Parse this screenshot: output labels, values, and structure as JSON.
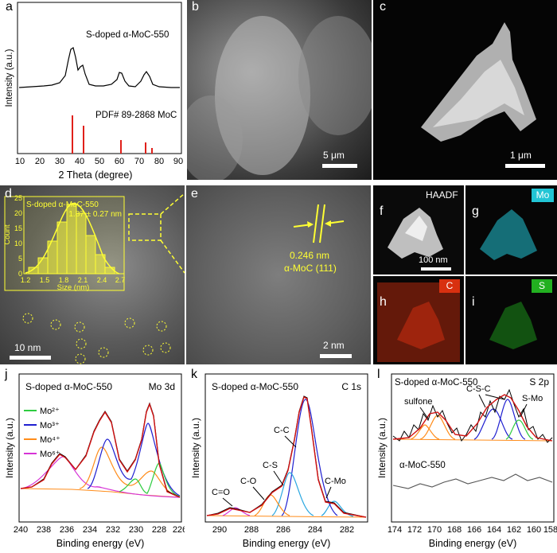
{
  "panels": {
    "a": {
      "label": "a",
      "sample_label": "S-doped α-MoC-550",
      "ref_label": "PDF# 89-2868 MoC",
      "xlabel": "2 Theta (degree)",
      "ylabel": "Intensity (a.u.)",
      "xticks": [
        "10",
        "20",
        "30",
        "40",
        "50",
        "60",
        "70",
        "80",
        "90"
      ]
    },
    "b": {
      "label": "b",
      "scale": "5 μm"
    },
    "c": {
      "label": "c",
      "scale": "1 μm"
    },
    "d": {
      "label": "d",
      "scale": "10 nm",
      "inset_title": "S-doped α-MoC-550",
      "inset_value": "1.87 ± 0.27 nm",
      "inset_ylabel": "Count",
      "inset_xlabel": "Size (nm)",
      "inset_xticks": [
        "1.2",
        "1.5",
        "1.8",
        "2.1",
        "2.4",
        "2.7"
      ],
      "inset_yticks": [
        "0",
        "5",
        "10",
        "15",
        "20",
        "25"
      ]
    },
    "e": {
      "label": "e",
      "scale": "2 nm",
      "spacing": "0.246 nm",
      "plane": "α-MoC (111)"
    },
    "f": {
      "label": "f",
      "tag": "HAADF",
      "scale": "100 nm"
    },
    "g": {
      "label": "g",
      "tag": "Mo"
    },
    "h": {
      "label": "h",
      "tag": "C"
    },
    "i": {
      "label": "i",
      "tag": "S"
    },
    "j": {
      "label": "j",
      "title": "S-doped α-MoC-550",
      "core": "Mo 3d",
      "legend": [
        "Mo²⁺",
        "Mo³⁺",
        "Mo⁴⁺",
        "Mo⁶⁺"
      ],
      "xlabel": "Binding energy (eV)",
      "ylabel": "Intensity (a.u.)",
      "xticks": [
        "240",
        "238",
        "236",
        "234",
        "232",
        "230",
        "228",
        "226"
      ]
    },
    "k": {
      "label": "k",
      "title": "S-doped α-MoC-550",
      "core": "C 1s",
      "peaks": [
        "C=O",
        "C-O",
        "C-S",
        "C-C",
        "C-Mo"
      ],
      "xlabel": "Binding energy (eV)",
      "ylabel": "Intensity (a.u.)",
      "xticks": [
        "290",
        "288",
        "286",
        "284",
        "282"
      ]
    },
    "l": {
      "label": "l",
      "title": "S-doped α-MoC-550",
      "core": "S 2p",
      "peaks": [
        "sulfone",
        "C-S-C",
        "S-Mo"
      ],
      "ref_label": "α-MoC-550",
      "xlabel": "Binding energy (eV)",
      "ylabel": "Intensity (a.u.)",
      "xticks": [
        "174",
        "172",
        "170",
        "168",
        "166",
        "164",
        "162",
        "160",
        "158"
      ]
    }
  },
  "colors": {
    "mo2": "#2ecc40",
    "mo3": "#1f1fd0",
    "mo4": "#ff8c1a",
    "mo6": "#d633d6",
    "fit": "#d01010",
    "raw": "#000000",
    "c_comp": "#2aa7e0",
    "ref_bar": "#e0201a",
    "inset": "#ffff33",
    "g_tag": "#22c5d5",
    "h_tag": "#d83010",
    "i_tag": "#22b020"
  },
  "chart_data": [
    {
      "type": "line",
      "title": "S-doped α-MoC-550",
      "xlabel": "2 Theta (degree)",
      "ylabel": "Intensity (a.u.)",
      "xlim": [
        10,
        90
      ],
      "series": [
        {
          "name": "S-doped α-MoC-550",
          "x": [
            10,
            20,
            30,
            34,
            36.5,
            39,
            42.5,
            46,
            55,
            61.5,
            68,
            74.5,
            79,
            85,
            90
          ],
          "y": [
            0.5,
            0.5,
            0.52,
            0.7,
            0.95,
            0.7,
            0.78,
            0.56,
            0.52,
            0.68,
            0.53,
            0.67,
            0.55,
            0.52,
            0.51
          ]
        }
      ],
      "ref_bars": {
        "name": "PDF# 89-2868 MoC",
        "x": [
          36.5,
          42.3,
          61.4,
          73.6,
          77.5
        ],
        "y": [
          1.0,
          0.58,
          0.28,
          0.22,
          0.1
        ]
      }
    },
    {
      "type": "bar",
      "title": "S-doped α-MoC-550",
      "xlabel": "Size (nm)",
      "ylabel": "Count",
      "ylim": [
        0,
        25
      ],
      "categories": [
        "1.35",
        "1.5",
        "1.65",
        "1.8",
        "1.95",
        "2.1",
        "2.25",
        "2.4",
        "2.55"
      ],
      "values": [
        2,
        5,
        10,
        16,
        22,
        19,
        12,
        6,
        2
      ]
    },
    {
      "type": "line",
      "title": "S-doped α-MoC-550",
      "xlabel": "Binding energy (eV)",
      "ylabel": "Intensity (a.u.)",
      "xlim": [
        240,
        226
      ],
      "peaks_eV": {
        "Mo2+": [
          228.3,
          231.5
        ],
        "Mo3+": [
          228.6,
          231.8
        ],
        "Mo4+": [
          229.5,
          232.7
        ],
        "Mo6+": [
          232.6,
          235.7
        ]
      }
    },
    {
      "type": "line",
      "title": "S-doped α-MoC-550",
      "xlabel": "Binding energy (eV)",
      "ylabel": "Intensity (a.u.)",
      "xlim": [
        291,
        281
      ],
      "peaks_eV": {
        "C=O": 288.8,
        "C-O": 286.6,
        "C-S": 285.4,
        "C-C": 284.8,
        "C-Mo": 283.6
      }
    },
    {
      "type": "line",
      "title": "S-doped α-MoC-550",
      "xlabel": "Binding energy (eV)",
      "ylabel": "Intensity (a.u.)",
      "xlim": [
        174,
        158
      ],
      "peaks_eV": {
        "sulfone": [
          168.3,
          169.5
        ],
        "C-S-C": [
          163.8,
          165.0
        ],
        "S-Mo": [
          162.6
        ]
      }
    }
  ]
}
